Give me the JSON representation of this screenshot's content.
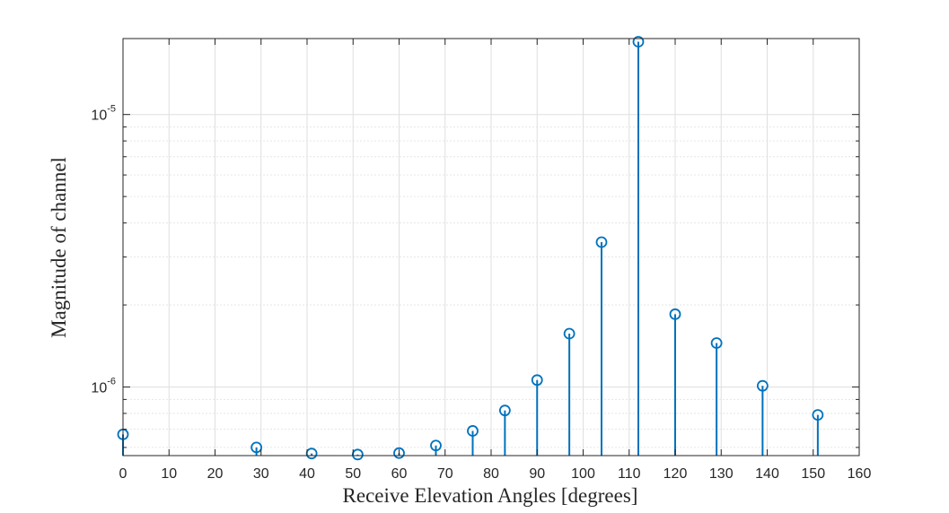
{
  "chart_data": {
    "type": "stem",
    "title": "",
    "xlabel": "Receive Elevation Angles [degrees]",
    "ylabel": "Magnitude of channel",
    "xlim": [
      0,
      160
    ],
    "ylim": [
      5.6e-07,
      1.9e-05
    ],
    "yscale": "log",
    "grid": true,
    "x_ticks": [
      0,
      10,
      20,
      30,
      40,
      50,
      60,
      70,
      80,
      90,
      100,
      110,
      120,
      130,
      140,
      150,
      160
    ],
    "y_ticks": [
      {
        "base": "10",
        "exponent": "-6",
        "value": 1e-06
      },
      {
        "base": "10",
        "exponent": "-5",
        "value": 1e-05
      }
    ],
    "series": [
      {
        "color": "#0072bd",
        "x": [
          0,
          29,
          41,
          51,
          60,
          68,
          76,
          83,
          90,
          97,
          104,
          112,
          120,
          129,
          139,
          151
        ],
        "values": [
          6.7e-07,
          6e-07,
          5.7e-07,
          5.65e-07,
          5.72e-07,
          6.1e-07,
          6.9e-07,
          8.2e-07,
          1.06e-06,
          1.57e-06,
          3.4e-06,
          1.85e-05,
          1.85e-06,
          1.45e-06,
          1.01e-06,
          7.9e-07
        ]
      }
    ]
  }
}
